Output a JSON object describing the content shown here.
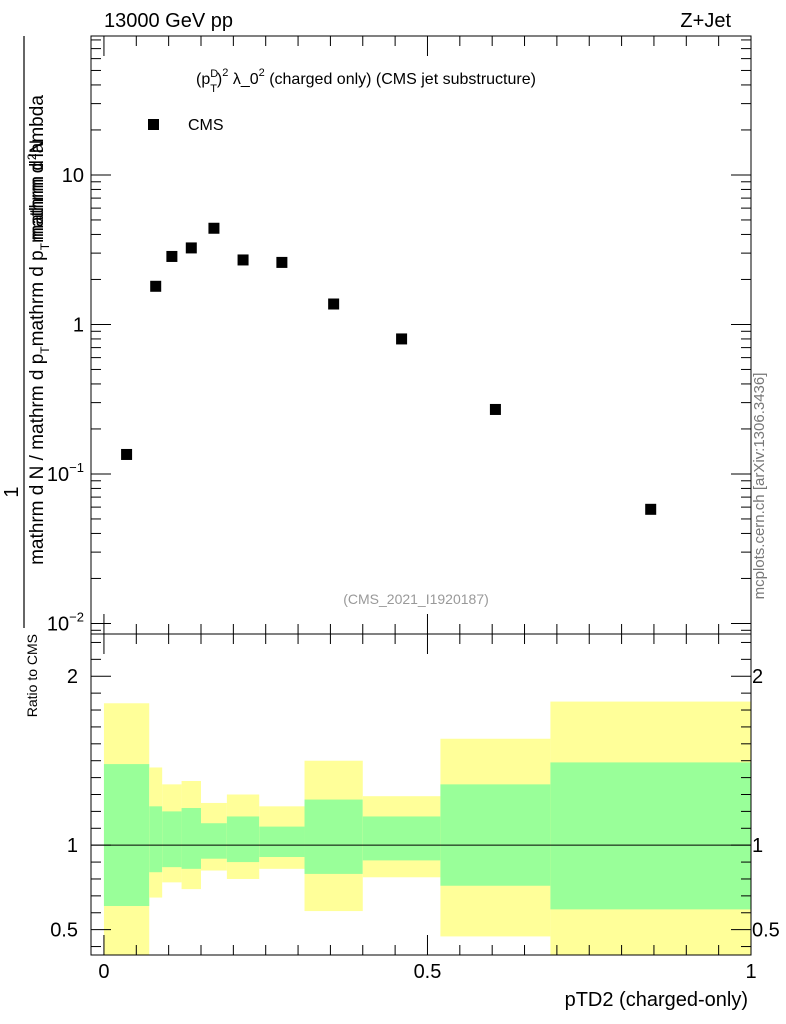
{
  "chart_data": [
    {
      "type": "scatter",
      "header_left": "13000 GeV pp",
      "header_right": "Z+Jet",
      "title": "(p_T^D)^2 λ_0^2 (charged only) (CMS jet substructure)",
      "title_parts": [
        "(p",
        "D",
        "T",
        ")",
        "2",
        " λ_0",
        "2",
        " (charged only) (CMS jet substructure)"
      ],
      "ylabel_numerator": "1",
      "ylabel_denominator": "mathrm d N / mathrm d p_T mathrm d p_T mathrm d lambda",
      "ylabel_denominator_parts": [
        "mathrm d N / mathrm d p",
        "T",
        "mathrm d p",
        "T",
        "mathrm d lambda"
      ],
      "ylabel_top": "mathrm d^2N",
      "ylabel_top_parts": [
        "mathrm d",
        "2",
        "N"
      ],
      "yscale": "log",
      "ylim": [
        0.0085,
        85
      ],
      "yticks": [
        {
          "value": 0.01,
          "base": "10",
          "exp": "−2"
        },
        {
          "value": 0.1,
          "base": "10",
          "exp": "−1"
        },
        {
          "value": 1,
          "base": "1",
          "exp": ""
        },
        {
          "value": 10,
          "base": "10",
          "exp": ""
        }
      ],
      "xlim": [
        -0.02,
        1.0
      ],
      "legend": "CMS",
      "watermark": "(CMS_2021_I1920187)",
      "side_label": "mcplots.cern.ch [arXiv:1306.3436]",
      "series": [
        {
          "name": "CMS",
          "x": [
            0.035,
            0.08,
            0.105,
            0.135,
            0.17,
            0.215,
            0.275,
            0.355,
            0.46,
            0.605,
            0.845
          ],
          "values": [
            0.135,
            1.8,
            2.85,
            3.25,
            4.4,
            2.7,
            2.6,
            1.37,
            0.8,
            0.27,
            0.058
          ]
        }
      ]
    },
    {
      "type": "area",
      "ylabel": "Ratio to CMS",
      "xlabel": "pTD2 (charged-only)",
      "ylim": [
        0.35,
        2.25
      ],
      "xlim": [
        -0.02,
        1.0
      ],
      "yticks": [
        0.5,
        1,
        2
      ],
      "ytick_labels": [
        "0.5",
        "1",
        "2"
      ],
      "xticks": [
        0,
        0.5,
        1
      ],
      "xtick_labels": [
        "0",
        "0.5",
        "1"
      ],
      "reference_line": 1,
      "bins": [
        {
          "lo": 0.0,
          "hi": 0.07,
          "inner": [
            0.64,
            1.48
          ],
          "outer": [
            0.0,
            1.84
          ]
        },
        {
          "lo": 0.07,
          "hi": 0.09,
          "inner": [
            0.84,
            1.23
          ],
          "outer": [
            0.69,
            1.46
          ]
        },
        {
          "lo": 0.09,
          "hi": 0.12,
          "inner": [
            0.87,
            1.2
          ],
          "outer": [
            0.78,
            1.36
          ]
        },
        {
          "lo": 0.12,
          "hi": 0.15,
          "inner": [
            0.86,
            1.22
          ],
          "outer": [
            0.74,
            1.38
          ]
        },
        {
          "lo": 0.15,
          "hi": 0.19,
          "inner": [
            0.92,
            1.13
          ],
          "outer": [
            0.85,
            1.25
          ]
        },
        {
          "lo": 0.19,
          "hi": 0.24,
          "inner": [
            0.9,
            1.17
          ],
          "outer": [
            0.8,
            1.3
          ]
        },
        {
          "lo": 0.24,
          "hi": 0.31,
          "inner": [
            0.93,
            1.11
          ],
          "outer": [
            0.86,
            1.23
          ]
        },
        {
          "lo": 0.31,
          "hi": 0.4,
          "inner": [
            0.83,
            1.27
          ],
          "outer": [
            0.61,
            1.5
          ]
        },
        {
          "lo": 0.4,
          "hi": 0.52,
          "inner": [
            0.91,
            1.17
          ],
          "outer": [
            0.81,
            1.29
          ]
        },
        {
          "lo": 0.52,
          "hi": 0.69,
          "inner": [
            0.76,
            1.36
          ],
          "outer": [
            0.46,
            1.63
          ]
        },
        {
          "lo": 0.69,
          "hi": 1.0,
          "inner": [
            0.62,
            1.49
          ],
          "outer": [
            0.0,
            1.85
          ]
        }
      ]
    }
  ],
  "colors": {
    "inner_band": "#99ff99",
    "outer_band": "#ffff99",
    "marker": "#000000",
    "watermark": "#999999",
    "side_label": "#777777"
  }
}
